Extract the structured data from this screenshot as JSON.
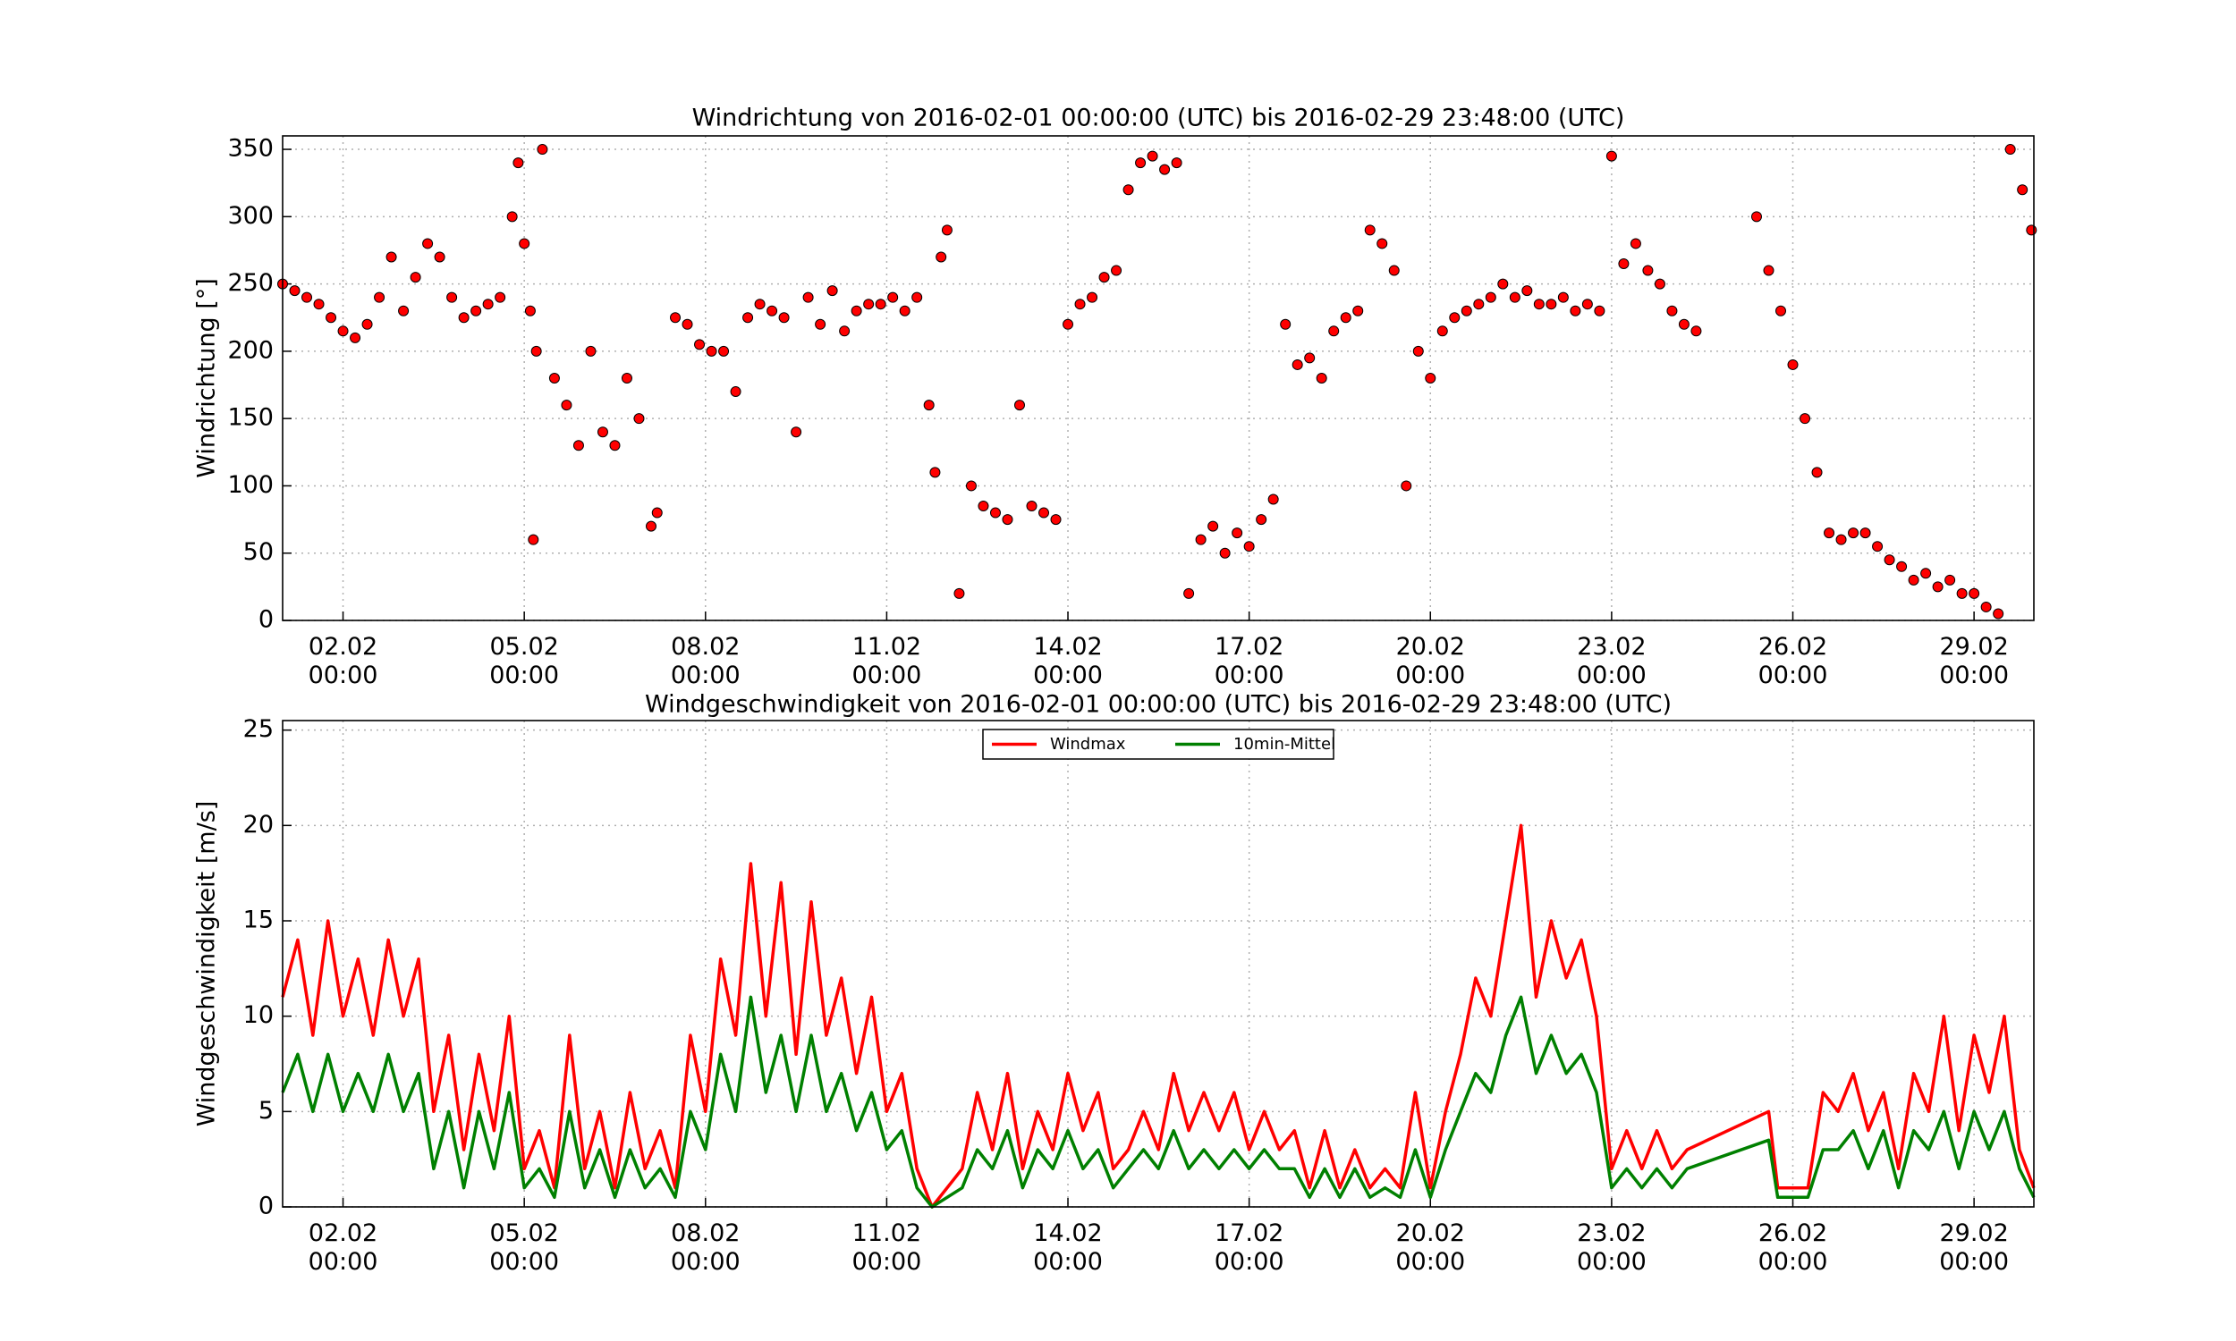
{
  "chart_data": [
    {
      "type": "scatter",
      "title": "Windrichtung von 2016-02-01 00:00:00 (UTC) bis 2016-02-29 23:48:00 (UTC)",
      "y_label": "Windrichtung [°]",
      "color": "#ff0000",
      "x": [
        1.0,
        1.2,
        1.4,
        1.6,
        1.8,
        2.0,
        2.2,
        2.4,
        2.6,
        2.8,
        3.0,
        3.2,
        3.4,
        3.6,
        3.8,
        4.0,
        4.2,
        4.4,
        4.6,
        4.8,
        4.9,
        5.0,
        5.1,
        5.15,
        5.2,
        5.3,
        5.5,
        5.7,
        5.9,
        6.1,
        6.3,
        6.5,
        6.7,
        6.9,
        7.1,
        7.2,
        7.5,
        7.7,
        7.9,
        8.1,
        8.3,
        8.5,
        8.7,
        8.9,
        9.1,
        9.3,
        9.5,
        9.7,
        9.9,
        10.1,
        10.3,
        10.5,
        10.7,
        10.9,
        11.1,
        11.3,
        11.5,
        11.7,
        11.8,
        11.9,
        12.0,
        12.2,
        12.4,
        12.6,
        12.8,
        13.0,
        13.2,
        13.4,
        13.6,
        13.8,
        14.0,
        14.2,
        14.4,
        14.6,
        14.8,
        15.0,
        15.2,
        15.4,
        15.6,
        15.8,
        16.0,
        16.2,
        16.4,
        16.6,
        16.8,
        17.0,
        17.2,
        17.4,
        17.6,
        17.8,
        18.0,
        18.2,
        18.4,
        18.6,
        18.8,
        19.0,
        19.2,
        19.4,
        19.6,
        19.8,
        20.0,
        20.2,
        20.4,
        20.6,
        20.8,
        21.0,
        21.2,
        21.4,
        21.6,
        21.8,
        22.0,
        22.2,
        22.4,
        22.6,
        22.8,
        23.0,
        23.2,
        23.4,
        23.6,
        23.8,
        24.0,
        24.2,
        24.4,
        25.4,
        25.6,
        25.8,
        26.0,
        26.2,
        26.4,
        26.6,
        26.8,
        27.0,
        27.2,
        27.4,
        27.6,
        27.8,
        28.0,
        28.2,
        28.4,
        28.6,
        28.8,
        29.0,
        29.2,
        29.4,
        29.6,
        29.8,
        29.95
      ],
      "values": [
        250,
        245,
        240,
        235,
        225,
        215,
        210,
        220,
        240,
        270,
        230,
        255,
        280,
        270,
        240,
        225,
        230,
        235,
        240,
        300,
        340,
        280,
        230,
        60,
        200,
        350,
        180,
        160,
        130,
        200,
        140,
        130,
        180,
        150,
        70,
        80,
        225,
        220,
        205,
        200,
        200,
        170,
        225,
        235,
        230,
        225,
        140,
        240,
        220,
        245,
        215,
        230,
        235,
        235,
        240,
        230,
        240,
        160,
        110,
        270,
        290,
        20,
        100,
        85,
        80,
        75,
        160,
        85,
        80,
        75,
        220,
        235,
        240,
        255,
        260,
        320,
        340,
        345,
        335,
        340,
        20,
        60,
        70,
        50,
        65,
        55,
        75,
        90,
        220,
        190,
        195,
        180,
        215,
        225,
        230,
        290,
        280,
        260,
        100,
        200,
        180,
        215,
        225,
        230,
        235,
        240,
        250,
        240,
        245,
        235,
        235,
        240,
        230,
        235,
        230,
        345,
        265,
        280,
        260,
        250,
        230,
        220,
        215,
        300,
        260,
        230,
        190,
        150,
        110,
        65,
        60,
        65,
        65,
        55,
        45,
        40,
        30,
        35,
        25,
        30,
        20,
        20,
        10,
        5,
        350,
        320,
        290
      ],
      "xlim": [
        1.0,
        29.99
      ],
      "xticks": [
        {
          "value": 2,
          "label": "02.02\n00:00"
        },
        {
          "value": 5,
          "label": "05.02\n00:00"
        },
        {
          "value": 8,
          "label": "08.02\n00:00"
        },
        {
          "value": 11,
          "label": "11.02\n00:00"
        },
        {
          "value": 14,
          "label": "14.02\n00:00"
        },
        {
          "value": 17,
          "label": "17.02\n00:00"
        },
        {
          "value": 20,
          "label": "20.02\n00:00"
        },
        {
          "value": 23,
          "label": "23.02\n00:00"
        },
        {
          "value": 26,
          "label": "26.02\n00:00"
        },
        {
          "value": 29,
          "label": "29.02\n00:00"
        }
      ],
      "ylim": [
        0,
        360
      ],
      "yticks": [
        0,
        50,
        100,
        150,
        200,
        250,
        300,
        350
      ],
      "grid": true
    },
    {
      "type": "line",
      "title": "Windgeschwindigkeit von 2016-02-01 00:00:00 (UTC) bis 2016-02-29 23:48:00 (UTC)",
      "y_label": "Windgeschwindigkeit [m/s]",
      "legend": "upper center",
      "x": [
        1.0,
        1.25,
        1.5,
        1.75,
        2.0,
        2.25,
        2.5,
        2.75,
        3.0,
        3.25,
        3.5,
        3.75,
        4.0,
        4.25,
        4.5,
        4.75,
        5.0,
        5.25,
        5.5,
        5.75,
        6.0,
        6.25,
        6.5,
        6.75,
        7.0,
        7.25,
        7.5,
        7.75,
        8.0,
        8.25,
        8.5,
        8.75,
        9.0,
        9.25,
        9.5,
        9.75,
        10.0,
        10.25,
        10.5,
        10.75,
        11.0,
        11.25,
        11.5,
        11.75,
        12.25,
        12.5,
        12.75,
        13.0,
        13.25,
        13.5,
        13.75,
        14.0,
        14.25,
        14.5,
        14.75,
        15.0,
        15.25,
        15.5,
        15.75,
        16.0,
        16.25,
        16.5,
        16.75,
        17.0,
        17.25,
        17.5,
        17.75,
        18.0,
        18.25,
        18.5,
        18.75,
        19.0,
        19.25,
        19.5,
        19.75,
        20.0,
        20.25,
        20.5,
        20.75,
        21.0,
        21.25,
        21.5,
        21.75,
        22.0,
        22.25,
        22.5,
        22.75,
        23.0,
        23.25,
        23.5,
        23.75,
        24.0,
        24.25,
        25.6,
        25.75,
        26.0,
        26.25,
        26.5,
        26.75,
        27.0,
        27.25,
        27.5,
        27.75,
        28.0,
        28.25,
        28.5,
        28.75,
        29.0,
        29.25,
        29.5,
        29.75,
        29.99
      ],
      "series": [
        {
          "name": "Windmax",
          "color": "#ff0000",
          "values": [
            11,
            14,
            9,
            15,
            10,
            13,
            9,
            14,
            10,
            13,
            5,
            9,
            3,
            8,
            4,
            10,
            2,
            4,
            1,
            9,
            2,
            5,
            1,
            6,
            2,
            4,
            1,
            9,
            5,
            13,
            9,
            18,
            10,
            17,
            8,
            16,
            9,
            12,
            7,
            11,
            5,
            7,
            2,
            0,
            2,
            6,
            3,
            7,
            2,
            5,
            3,
            7,
            4,
            6,
            2,
            3,
            5,
            3,
            7,
            4,
            6,
            4,
            6,
            3,
            5,
            3,
            4,
            1,
            4,
            1,
            3,
            1,
            2,
            1,
            6,
            1,
            5,
            8,
            12,
            10,
            15,
            20,
            11,
            15,
            12,
            14,
            10,
            2,
            4,
            2,
            4,
            2,
            3,
            5,
            1,
            1,
            1,
            6,
            5,
            7,
            4,
            6,
            2,
            7,
            5,
            10,
            4,
            9,
            6,
            10,
            3,
            1
          ]
        },
        {
          "name": "10min-Mittel",
          "color": "#008000",
          "values": [
            6,
            8,
            5,
            8,
            5,
            7,
            5,
            8,
            5,
            7,
            2,
            5,
            1,
            5,
            2,
            6,
            1,
            2,
            0.5,
            5,
            1,
            3,
            0.5,
            3,
            1,
            2,
            0.5,
            5,
            3,
            8,
            5,
            11,
            6,
            9,
            5,
            9,
            5,
            7,
            4,
            6,
            3,
            4,
            1,
            0,
            1,
            3,
            2,
            4,
            1,
            3,
            2,
            4,
            2,
            3,
            1,
            2,
            3,
            2,
            4,
            2,
            3,
            2,
            3,
            2,
            3,
            2,
            2,
            0.5,
            2,
            0.5,
            2,
            0.5,
            1,
            0.5,
            3,
            0.5,
            3,
            5,
            7,
            6,
            9,
            11,
            7,
            9,
            7,
            8,
            6,
            1,
            2,
            1,
            2,
            1,
            2,
            3.5,
            0.5,
            0.5,
            0.5,
            3,
            3,
            4,
            2,
            4,
            1,
            4,
            3,
            5,
            2,
            5,
            3,
            5,
            2,
            0.5
          ]
        }
      ],
      "xlim": [
        1.0,
        29.99
      ],
      "xticks": [
        {
          "value": 2,
          "label": "02.02\n00:00"
        },
        {
          "value": 5,
          "label": "05.02\n00:00"
        },
        {
          "value": 8,
          "label": "08.02\n00:00"
        },
        {
          "value": 11,
          "label": "11.02\n00:00"
        },
        {
          "value": 14,
          "label": "14.02\n00:00"
        },
        {
          "value": 17,
          "label": "17.02\n00:00"
        },
        {
          "value": 20,
          "label": "20.02\n00:00"
        },
        {
          "value": 23,
          "label": "23.02\n00:00"
        },
        {
          "value": 26,
          "label": "26.02\n00:00"
        },
        {
          "value": 29,
          "label": "29.02\n00:00"
        }
      ],
      "ylim": [
        0,
        25.5
      ],
      "yticks": [
        0,
        5,
        10,
        15,
        20,
        25
      ],
      "grid": true
    }
  ]
}
